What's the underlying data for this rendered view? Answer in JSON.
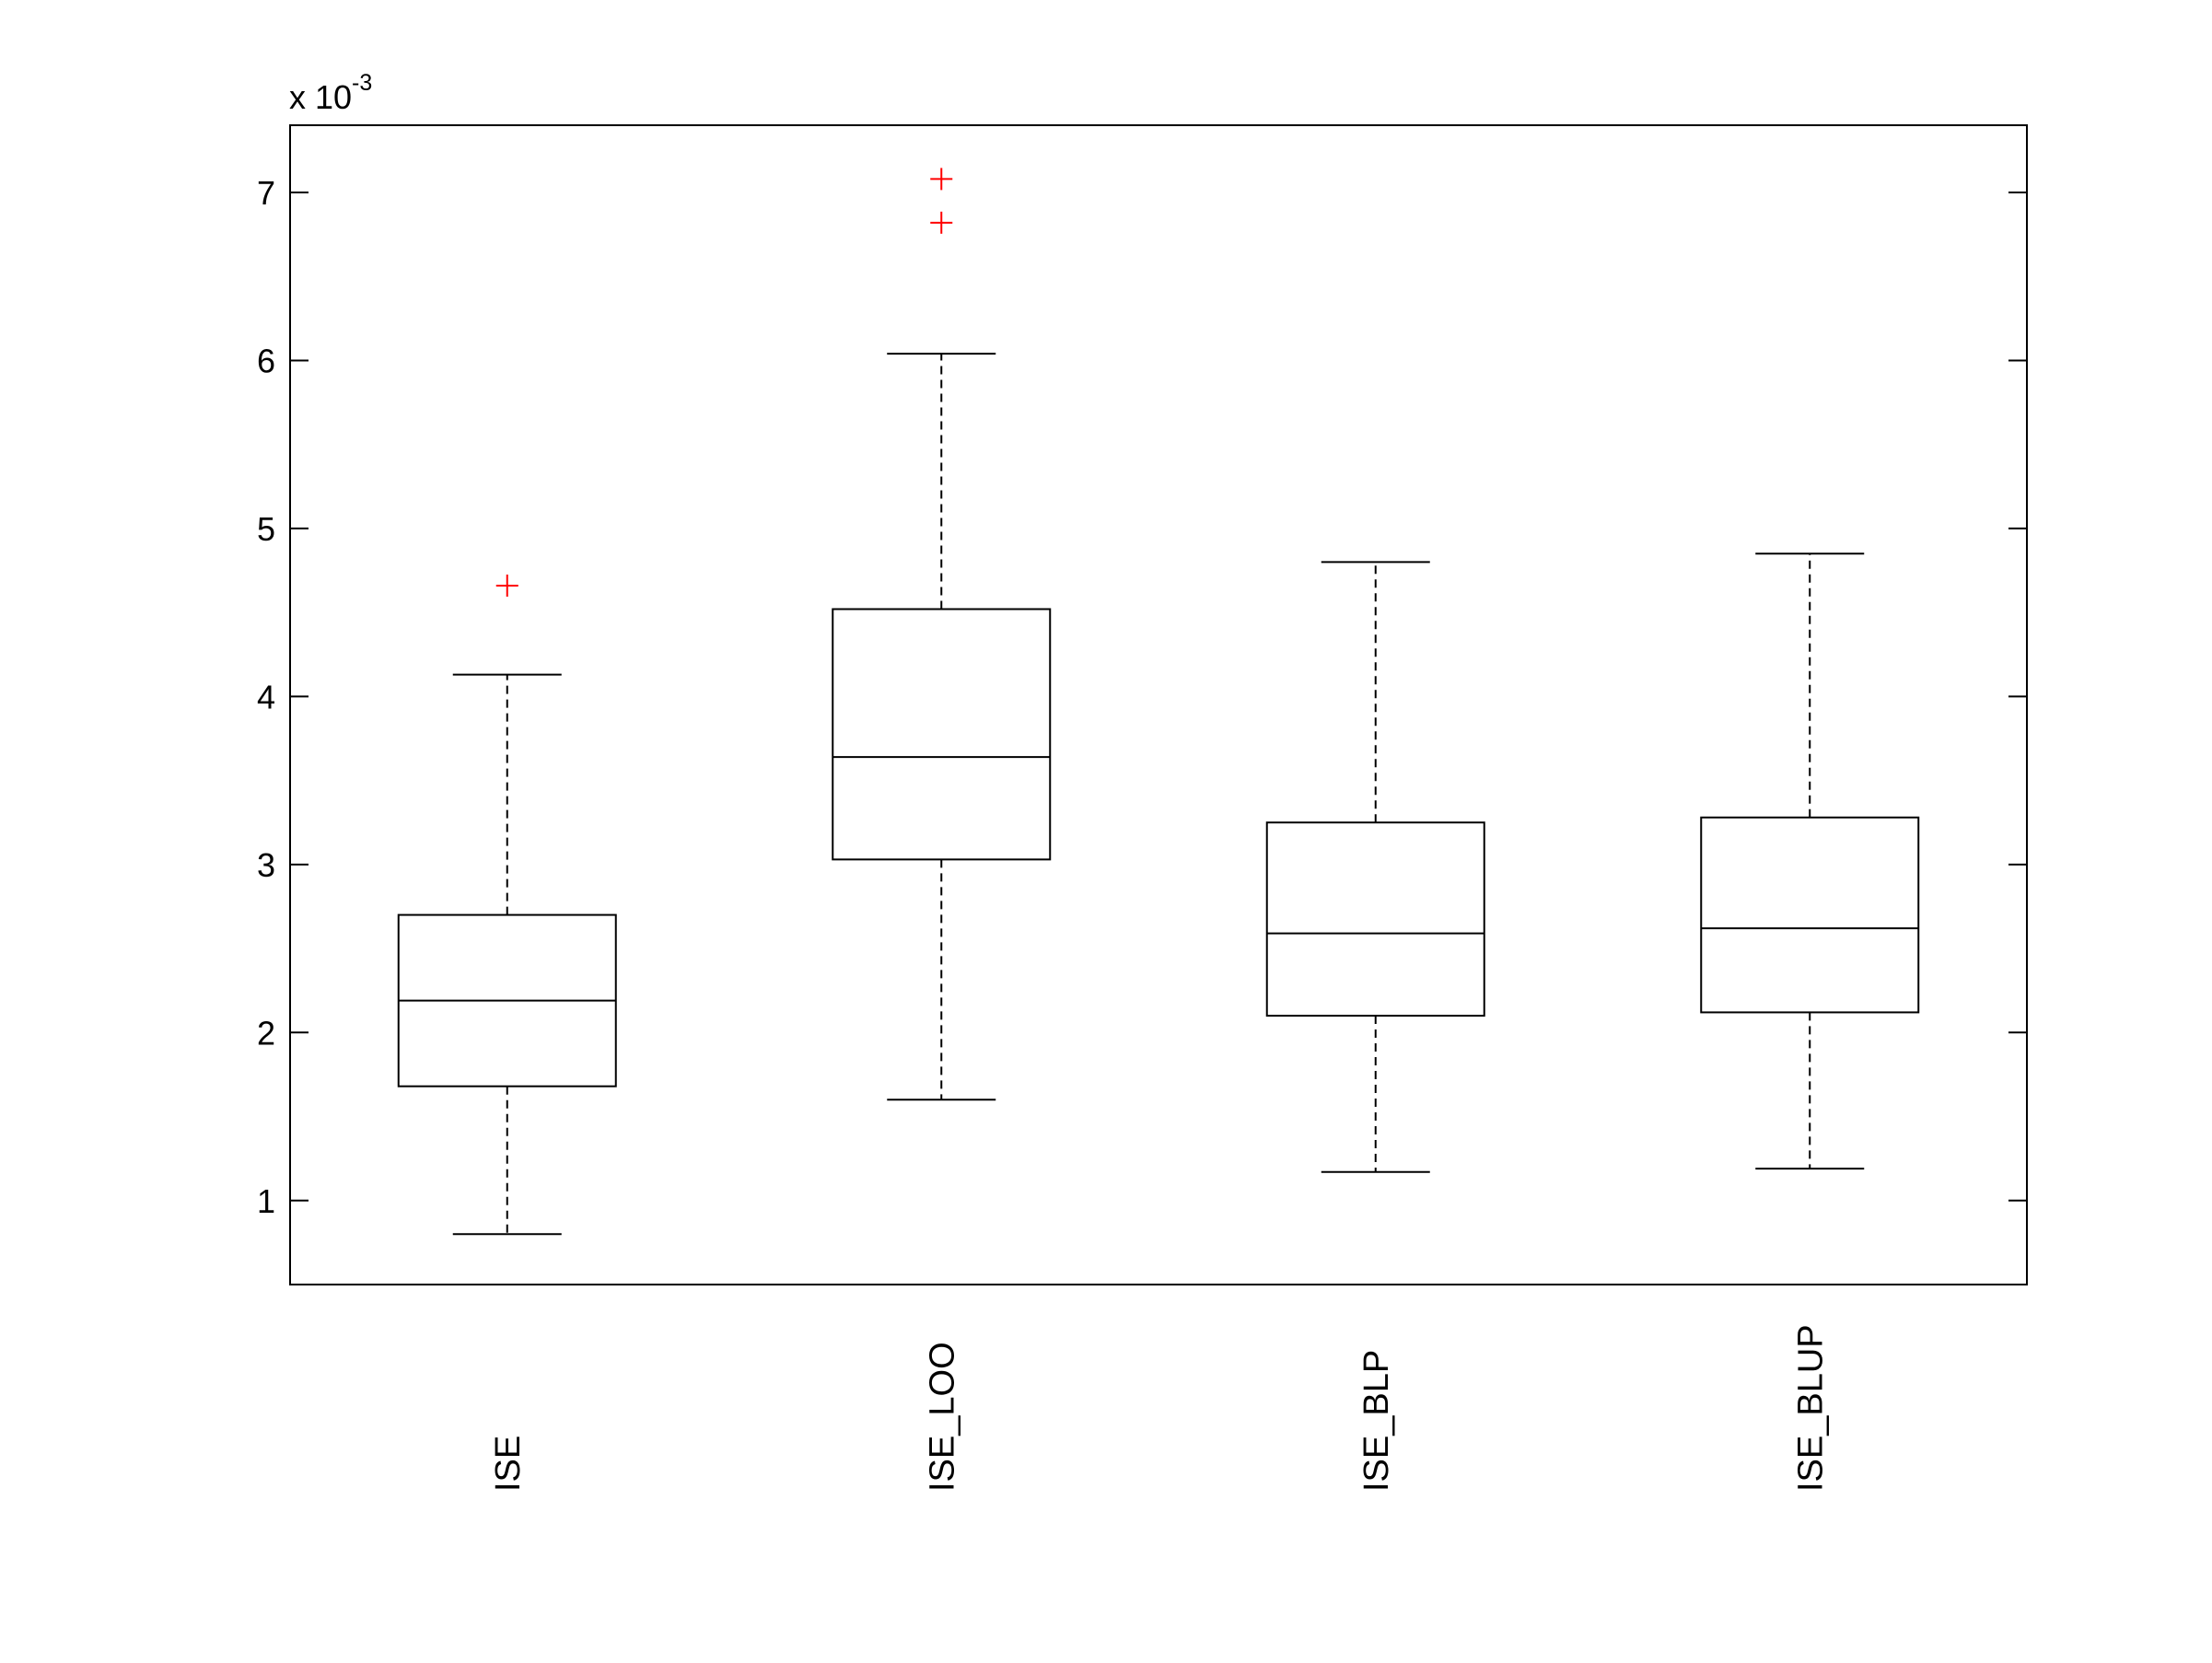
{
  "chart_data": {
    "type": "box",
    "title": "",
    "xlabel": "",
    "ylabel": "",
    "y_exponent_label": {
      "prefix": "x 10",
      "exponent": "-3"
    },
    "ylim": [
      0.5,
      7.4
    ],
    "yticks": [
      1,
      2,
      3,
      4,
      5,
      6,
      7
    ],
    "ytick_labels": [
      "1",
      "2",
      "3",
      "4",
      "5",
      "6",
      "7"
    ],
    "grid": false,
    "categories": [
      "ISE",
      "ISE_LOO",
      "ISE_BLP",
      "ISE_BLUP"
    ],
    "boxes": [
      {
        "category": "ISE",
        "whisker_low": 0.8,
        "q1": 1.68,
        "median": 2.19,
        "q3": 2.7,
        "whisker_high": 4.13,
        "outliers": [
          4.66
        ]
      },
      {
        "category": "ISE_LOO",
        "whisker_low": 1.6,
        "q1": 3.03,
        "median": 3.64,
        "q3": 4.52,
        "whisker_high": 6.04,
        "outliers": [
          6.82,
          7.08
        ]
      },
      {
        "category": "ISE_BLP",
        "whisker_low": 1.17,
        "q1": 2.1,
        "median": 2.59,
        "q3": 3.25,
        "whisker_high": 4.8,
        "outliers": []
      },
      {
        "category": "ISE_BLUP",
        "whisker_low": 1.19,
        "q1": 2.12,
        "median": 2.62,
        "q3": 3.28,
        "whisker_high": 4.85,
        "outliers": []
      }
    ],
    "colors": {
      "box": "#000000",
      "outlier": "#ff0000"
    }
  }
}
